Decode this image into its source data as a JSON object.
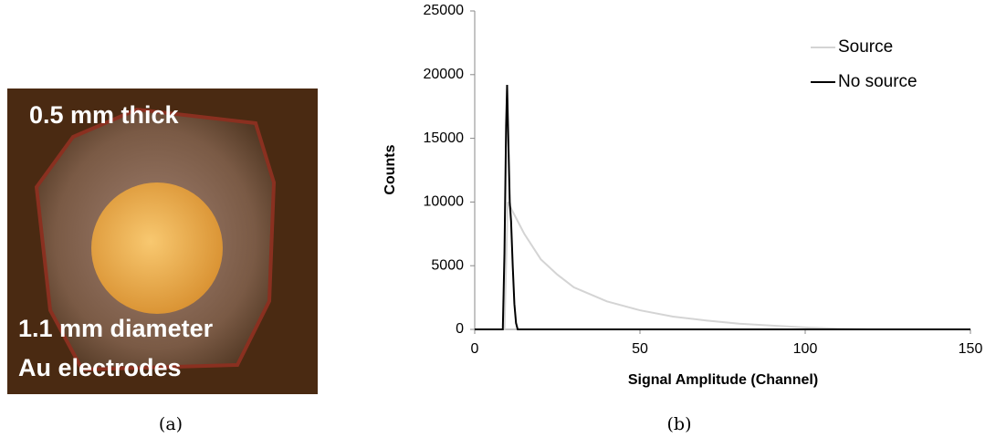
{
  "photo": {
    "labels": [
      "0.5 mm thick",
      "1.1 mm diameter",
      "Au electrodes"
    ],
    "caption": "(a)"
  },
  "chart_data": {
    "type": "line",
    "caption": "(b)",
    "x_label": "Signal Amplitude (Channel)",
    "y_label": "Counts",
    "xlim": [
      0,
      150
    ],
    "xticks": [
      0,
      50,
      100,
      150
    ],
    "ylim": [
      0,
      25000
    ],
    "yticks": [
      0,
      5000,
      10000,
      15000,
      20000,
      25000
    ],
    "grid": false,
    "legend": "upper right",
    "series": [
      {
        "name": "Source",
        "color": "#d4d4d4",
        "x": [
          0,
          9,
          10,
          12,
          15,
          20,
          25,
          30,
          40,
          50,
          60,
          70,
          80,
          90,
          100,
          110,
          120,
          150
        ],
        "values": [
          0,
          0,
          10000,
          9000,
          7500,
          5500,
          4300,
          3300,
          2200,
          1500,
          1000,
          700,
          450,
          300,
          150,
          50,
          0,
          0
        ]
      },
      {
        "name": "No source",
        "color": "#000000",
        "x": [
          0,
          8.5,
          9,
          9.5,
          9.8,
          10.2,
          10.6,
          11,
          11.5,
          12,
          12.5,
          13,
          150
        ],
        "values": [
          0,
          0,
          6000,
          16000,
          19200,
          14500,
          10000,
          8500,
          5000,
          2000,
          500,
          0,
          0
        ]
      }
    ]
  }
}
